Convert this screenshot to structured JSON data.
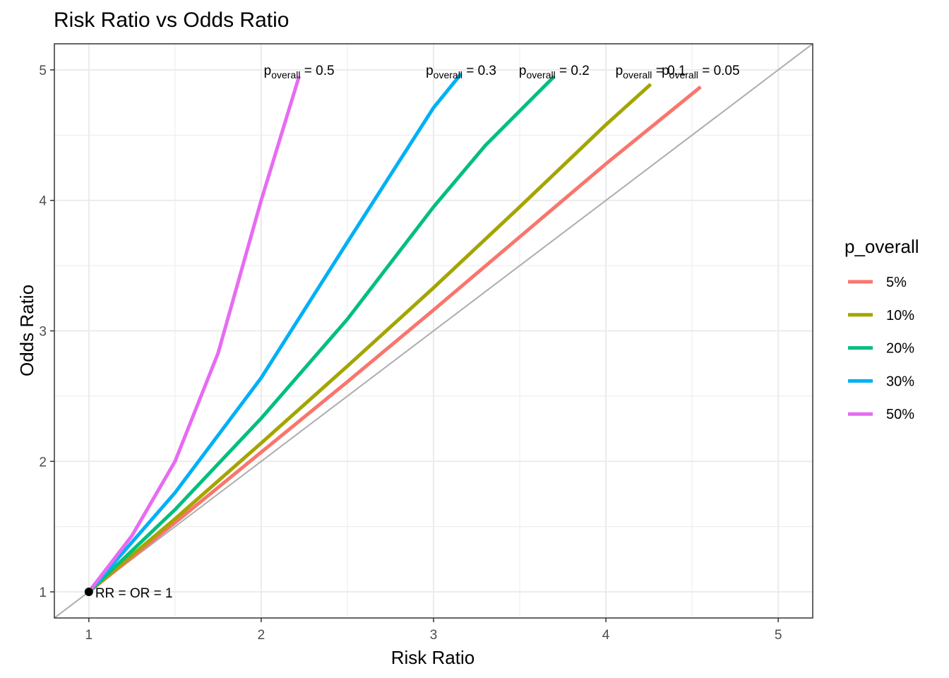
{
  "chart_data": {
    "type": "line",
    "title": "Risk Ratio vs Odds Ratio",
    "xlabel": "Risk Ratio",
    "ylabel": "Odds Ratio",
    "xlim": [
      0.8,
      5.2
    ],
    "ylim": [
      0.8,
      5.2
    ],
    "x_ticks": [
      "1",
      "2",
      "3",
      "4",
      "5"
    ],
    "y_ticks": [
      "1",
      "2",
      "3",
      "4",
      "5"
    ],
    "grid": true,
    "legend": {
      "title": "p_overall",
      "position": "right"
    },
    "series": [
      {
        "name": "5%",
        "p": 0.05,
        "color": "#F8766D",
        "label_main": "p",
        "label_sub": "overall",
        "label_tail": " = 0.05",
        "points": [
          [
            1,
            1
          ],
          [
            1.5,
            1.53
          ],
          [
            2,
            2.07
          ],
          [
            2.5,
            2.61
          ],
          [
            3,
            3.16
          ],
          [
            3.5,
            3.72
          ],
          [
            4,
            4.28
          ],
          [
            4.55,
            4.87
          ]
        ]
      },
      {
        "name": "10%",
        "p": 0.1,
        "color": "#A3A500",
        "label_main": "p",
        "label_sub": "overall",
        "label_tail": " = 0.1",
        "points": [
          [
            1,
            1
          ],
          [
            1.5,
            1.56
          ],
          [
            2,
            2.14
          ],
          [
            2.5,
            2.73
          ],
          [
            3,
            3.33
          ],
          [
            3.5,
            3.95
          ],
          [
            4,
            4.58
          ],
          [
            4.26,
            4.89
          ]
        ]
      },
      {
        "name": "20%",
        "p": 0.2,
        "color": "#00BF7D",
        "label_main": "p",
        "label_sub": "overall",
        "label_tail": " = 0.2",
        "points": [
          [
            1,
            1
          ],
          [
            1.5,
            1.63
          ],
          [
            2,
            2.33
          ],
          [
            2.5,
            3.09
          ],
          [
            3,
            3.95
          ],
          [
            3.3,
            4.42
          ],
          [
            3.7,
            4.95
          ]
        ]
      },
      {
        "name": "30%",
        "p": 0.3,
        "color": "#00B0F6",
        "label_main": "p",
        "label_sub": "overall",
        "label_tail": " = 0.3",
        "points": [
          [
            1,
            1
          ],
          [
            1.5,
            1.76
          ],
          [
            2,
            2.64
          ],
          [
            2.5,
            3.68
          ],
          [
            3,
            4.71
          ],
          [
            3.16,
            4.97
          ]
        ]
      },
      {
        "name": "50%",
        "p": 0.5,
        "color": "#E76BF3",
        "label_main": "p",
        "label_sub": "overall",
        "label_tail": " = 0.5",
        "points": [
          [
            1,
            1
          ],
          [
            1.25,
            1.43
          ],
          [
            1.5,
            2.0
          ],
          [
            1.75,
            2.83
          ],
          [
            2,
            4.0
          ],
          [
            2.22,
            4.95
          ]
        ]
      }
    ],
    "reference_line": {
      "slope": 1,
      "intercept": 0,
      "color": "#ADADAD"
    },
    "point_annotation": {
      "x": 1,
      "y": 1,
      "text": "RR = OR = 1"
    }
  }
}
